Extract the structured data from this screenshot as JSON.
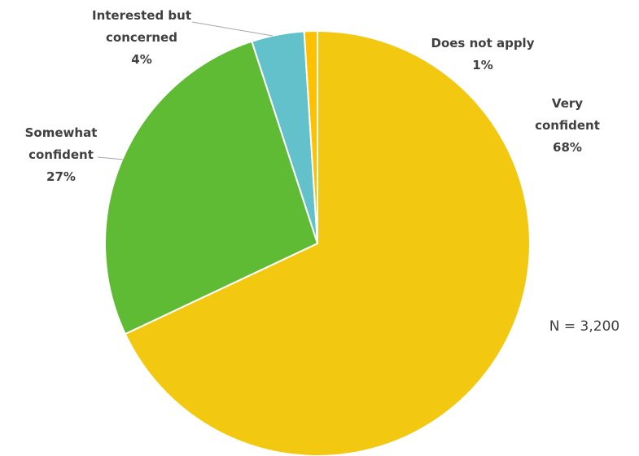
{
  "chart_data": {
    "type": "pie",
    "slices": [
      {
        "label": "Very confident",
        "label_lines": [
          "Very",
          "confident"
        ],
        "value": 68,
        "value_label": "68%",
        "color": "#f2c811"
      },
      {
        "label": "Somewhat confident",
        "label_lines": [
          "Somewhat",
          "confident"
        ],
        "value": 27,
        "value_label": "27%",
        "color": "#5ebb33"
      },
      {
        "label": "Interested but concerned",
        "label_lines": [
          "Interested but",
          "concerned"
        ],
        "value": 4,
        "value_label": "4%",
        "color": "#63c1cb"
      },
      {
        "label": "Does not apply",
        "label_lines": [
          "Does not apply"
        ],
        "value": 1,
        "value_label": "1%",
        "color": "#ffc000"
      }
    ],
    "annotation": "N = 3,200",
    "start_angle": "12 o'clock",
    "direction": "counterclockwise"
  }
}
